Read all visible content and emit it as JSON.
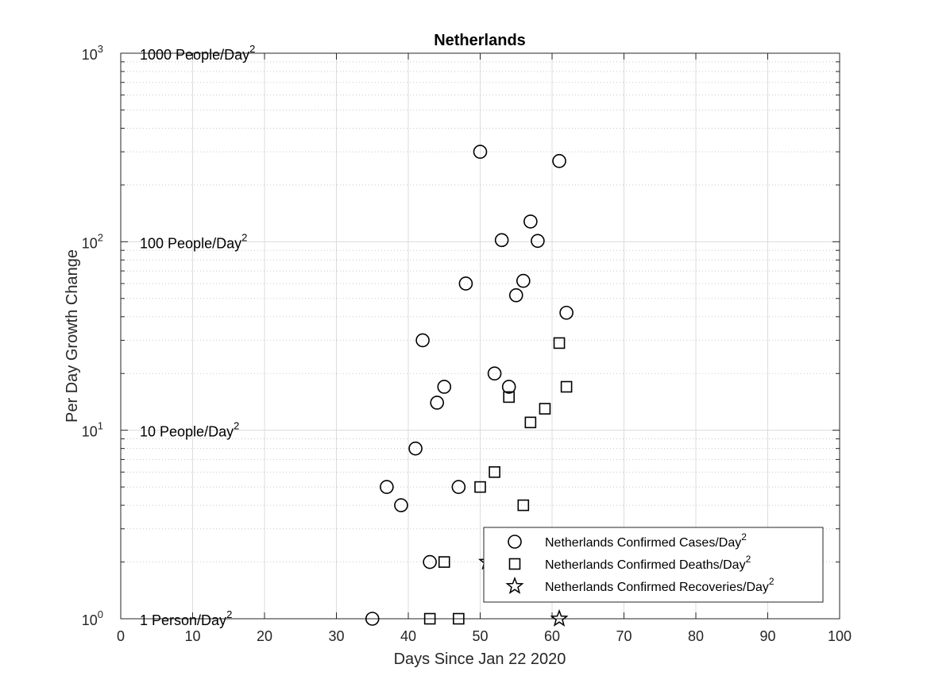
{
  "chart_data": {
    "type": "scatter",
    "title": "Netherlands",
    "xlabel": "Days Since Jan 22 2020",
    "ylabel": "Per Day Growth Change",
    "xlim": [
      0,
      100
    ],
    "ylim": [
      1,
      1000
    ],
    "yscale": "log",
    "grid": true,
    "legend_position": "bottom-right",
    "x_ticks": [
      "0",
      "10",
      "20",
      "30",
      "40",
      "50",
      "60",
      "70",
      "80",
      "90",
      "100"
    ],
    "y_ticks": [
      {
        "base": "10",
        "exp": "0"
      },
      {
        "base": "10",
        "exp": "1"
      },
      {
        "base": "10",
        "exp": "2"
      },
      {
        "base": "10",
        "exp": "3"
      }
    ],
    "annotations": [
      {
        "text": "1000 People/Day",
        "sup": "2",
        "y": 1000
      },
      {
        "text": "100 People/Day",
        "sup": "2",
        "y": 100
      },
      {
        "text": "10 People/Day",
        "sup": "2",
        "y": 10
      },
      {
        "text": "1 Person/Day",
        "sup": "2",
        "y": 1
      }
    ],
    "series": [
      {
        "name": "Netherlands Confirmed Cases/Day",
        "name_sup": "2",
        "marker": "circle",
        "color": "#000000",
        "points": [
          [
            35,
            1
          ],
          [
            37,
            5
          ],
          [
            39,
            4
          ],
          [
            41,
            8
          ],
          [
            42,
            30
          ],
          [
            43,
            2
          ],
          [
            44,
            14
          ],
          [
            45,
            17
          ],
          [
            47,
            5
          ],
          [
            48,
            60
          ],
          [
            50,
            300
          ],
          [
            52,
            20
          ],
          [
            53,
            102
          ],
          [
            54,
            17
          ],
          [
            55,
            52
          ],
          [
            56,
            62
          ],
          [
            57,
            128
          ],
          [
            58,
            101
          ],
          [
            61,
            268
          ],
          [
            62,
            42
          ]
        ]
      },
      {
        "name": "Netherlands Confirmed Deaths/Day",
        "name_sup": "2",
        "marker": "square",
        "color": "#000000",
        "points": [
          [
            43,
            1
          ],
          [
            45,
            2
          ],
          [
            47,
            1
          ],
          [
            50,
            5
          ],
          [
            52,
            6
          ],
          [
            54,
            15
          ],
          [
            56,
            4
          ],
          [
            57,
            11
          ],
          [
            59,
            13
          ],
          [
            61,
            29
          ],
          [
            62,
            17
          ]
        ]
      },
      {
        "name": "Netherlands Confirmed Recoveries/Day",
        "name_sup": "2",
        "marker": "star",
        "color": "#000000",
        "points": [
          [
            51,
            2
          ],
          [
            61,
            1
          ]
        ]
      }
    ]
  }
}
